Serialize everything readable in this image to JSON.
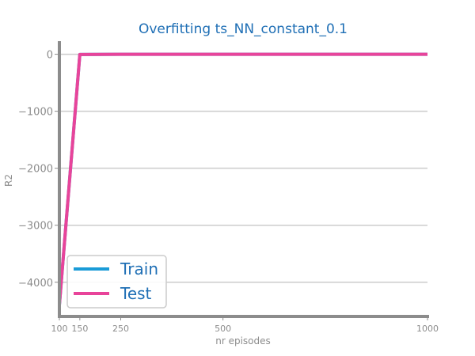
{
  "chart_data": {
    "type": "line",
    "title": "Overfitting ts_NN_constant_0.1",
    "xlabel": "nr episodes",
    "ylabel": "R2",
    "x": [
      100,
      150,
      250,
      500,
      1000
    ],
    "xticks": [
      "100",
      "150",
      "250",
      "500",
      "1000"
    ],
    "yticks": [
      "0",
      "−1000",
      "−2000",
      "−3000",
      "−4000"
    ],
    "ytick_values": [
      0,
      -1000,
      -2000,
      -3000,
      -4000
    ],
    "xlim": [
      100,
      1000
    ],
    "ylim": [
      -4600,
      230
    ],
    "grid": "horizontal",
    "legend_position": "lower-left",
    "series": [
      {
        "name": "Train",
        "color": "#1a9bd7",
        "values": [
          -4400,
          -5,
          0,
          0,
          0
        ]
      },
      {
        "name": "Test",
        "color": "#e8449a",
        "values": [
          -4400,
          -5,
          0,
          0,
          0
        ]
      }
    ]
  }
}
